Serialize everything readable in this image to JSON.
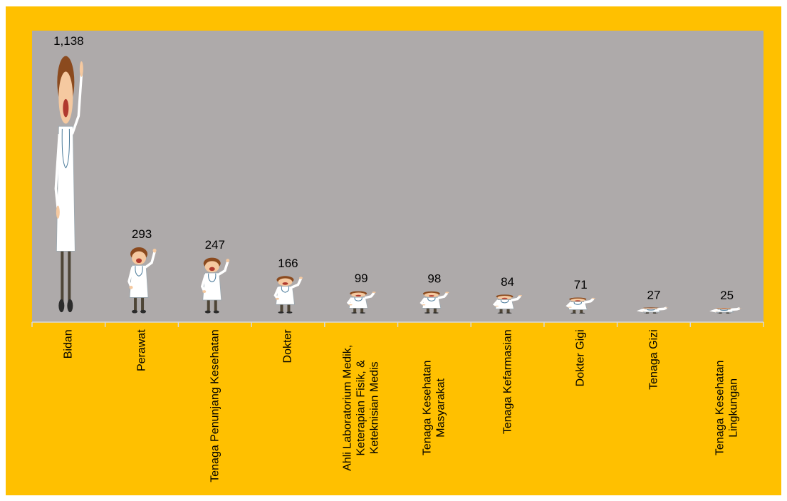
{
  "chart_data": {
    "type": "pictograph",
    "categories": [
      "Bidan",
      "Perawat",
      "Tenaga Penunjang Kesehatan",
      "Dokter",
      "Ahli Laboratorium Medik, Keterapian Fisik, & Keteknisian Medis",
      "Tenaga Kesehatan Masyarakat",
      "Tenaga Kefarmasian",
      "Dokter Gigi",
      "Tenaga Gizi",
      "Tenaga Kesehatan Lingkungan"
    ],
    "values": [
      1138,
      293,
      247,
      166,
      99,
      98,
      84,
      71,
      27,
      25
    ],
    "value_labels": [
      "1,138",
      "293",
      "247",
      "166",
      "99",
      "98",
      "84",
      "71",
      "27",
      "25"
    ],
    "plot_color": "#AEAAAA"
  }
}
